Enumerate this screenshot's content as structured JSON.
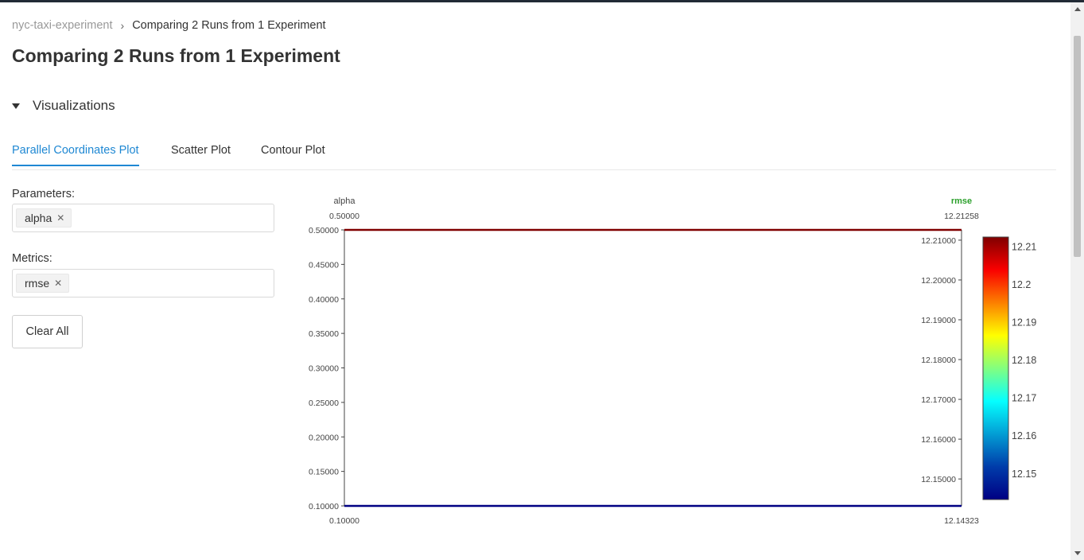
{
  "breadcrumb": {
    "parent": "nyc-taxi-experiment",
    "current": "Comparing 2 Runs from 1 Experiment"
  },
  "page_title": "Comparing 2 Runs from 1 Experiment",
  "visualizations": {
    "header": "Visualizations",
    "expanded": true
  },
  "tabs": [
    {
      "label": "Parallel Coordinates Plot",
      "active": true
    },
    {
      "label": "Scatter Plot",
      "active": false
    },
    {
      "label": "Contour Plot",
      "active": false
    }
  ],
  "filters": {
    "parameters_label": "Parameters:",
    "parameters": [
      "alpha"
    ],
    "metrics_label": "Metrics:",
    "metrics": [
      "rmse"
    ],
    "clear_all_label": "Clear All",
    "remove_icon": "close-icon"
  },
  "colors": {
    "accent": "#1f88d3",
    "metric_label": "#2ca02c"
  },
  "chart_data": {
    "type": "parallel_coordinates",
    "dimensions": [
      {
        "label": "alpha",
        "range": [
          0.1,
          0.5
        ],
        "top_label": "0.50000",
        "bottom_label": "0.10000",
        "ticks": [
          "0.10000",
          "0.15000",
          "0.20000",
          "0.25000",
          "0.30000",
          "0.35000",
          "0.40000",
          "0.45000",
          "0.50000"
        ],
        "tick_values": [
          0.1,
          0.15,
          0.2,
          0.25,
          0.3,
          0.35,
          0.4,
          0.45,
          0.5
        ]
      },
      {
        "label": "rmse",
        "range": [
          12.14323,
          12.21258
        ],
        "top_label": "12.21258",
        "bottom_label": "12.14323",
        "ticks": [
          "12.15000",
          "12.16000",
          "12.17000",
          "12.18000",
          "12.19000",
          "12.20000",
          "12.21000"
        ],
        "tick_values": [
          12.15,
          12.16,
          12.17,
          12.18,
          12.19,
          12.2,
          12.21
        ]
      }
    ],
    "runs": [
      {
        "alpha": 0.5,
        "rmse": 12.21258
      },
      {
        "alpha": 0.1,
        "rmse": 12.14323
      }
    ],
    "colorbar": {
      "colorscale": "Jet",
      "range": [
        12.14323,
        12.21258
      ],
      "ticks": [
        "12.15",
        "12.16",
        "12.17",
        "12.18",
        "12.19",
        "12.2",
        "12.21"
      ],
      "tick_values": [
        12.15,
        12.16,
        12.17,
        12.18,
        12.19,
        12.2,
        12.21
      ]
    }
  }
}
